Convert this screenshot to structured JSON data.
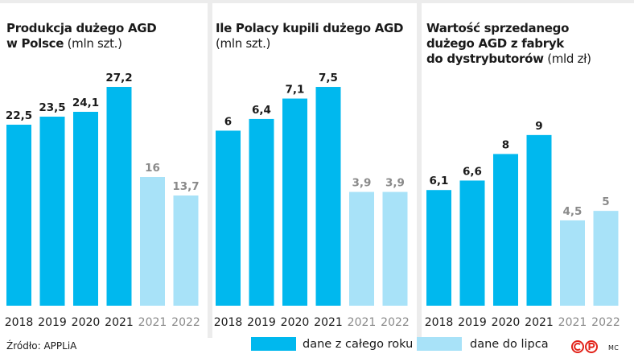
{
  "chart_data": [
    {
      "type": "bar",
      "title": "Produkcja dużego AGD w Polsce",
      "title_lines": [
        "Produkcja dużego AGD",
        "w Polsce"
      ],
      "unit": "(mln szt.)",
      "categories": [
        "2018",
        "2019",
        "2020",
        "2021",
        "2021",
        "2022"
      ],
      "values": [
        22.5,
        23.5,
        24.1,
        27.2,
        16,
        13.7
      ],
      "value_labels": [
        "22,5",
        "23,5",
        "24,1",
        "27,2",
        "16",
        "13,7"
      ],
      "series_index": [
        0,
        0,
        0,
        0,
        1,
        1
      ],
      "ylim": [
        0,
        33
      ]
    },
    {
      "type": "bar",
      "title": "Ile Polacy kupili dużego AGD",
      "title_lines": [
        "Ile Polacy kupili dużego AGD"
      ],
      "unit": "(mln szt.)",
      "categories": [
        "2018",
        "2019",
        "2020",
        "2021",
        "2021",
        "2022"
      ],
      "values": [
        6,
        6.4,
        7.1,
        7.5,
        3.9,
        3.9
      ],
      "value_labels": [
        "6",
        "6,4",
        "7,1",
        "7,5",
        "3,9",
        "3,9"
      ],
      "series_index": [
        0,
        0,
        0,
        0,
        1,
        1
      ],
      "ylim": [
        0,
        9.1
      ]
    },
    {
      "type": "bar",
      "title": "Wartość sprzedanego dużego AGD z fabryk do dystrybutorów",
      "title_lines": [
        "Wartość sprzedanego",
        "dużego AGD z fabryk",
        "do dystrybutorów"
      ],
      "unit": "(mld zł)",
      "categories": [
        "2018",
        "2019",
        "2020",
        "2021",
        "2021",
        "2022"
      ],
      "values": [
        6.1,
        6.6,
        8,
        9,
        4.5,
        5
      ],
      "value_labels": [
        "6,1",
        "6,6",
        "8",
        "9",
        "4,5",
        "5"
      ],
      "series_index": [
        0,
        0,
        0,
        0,
        1,
        1
      ],
      "ylim": [
        0,
        14
      ]
    }
  ],
  "legend": [
    {
      "label": "dane z całego roku",
      "color": "#00b8ee"
    },
    {
      "label": "dane do lipca",
      "color": "#a8e2f8"
    }
  ],
  "colors": {
    "full_year_bar": "#00b8ee",
    "partial_bar": "#a8e2f8",
    "full_year_text": "#1a1a1a",
    "partial_text": "#8a8a8a"
  },
  "source": "Źródło: APPLiA",
  "logo_icon": "cp-logo-icon",
  "credit": "MC"
}
